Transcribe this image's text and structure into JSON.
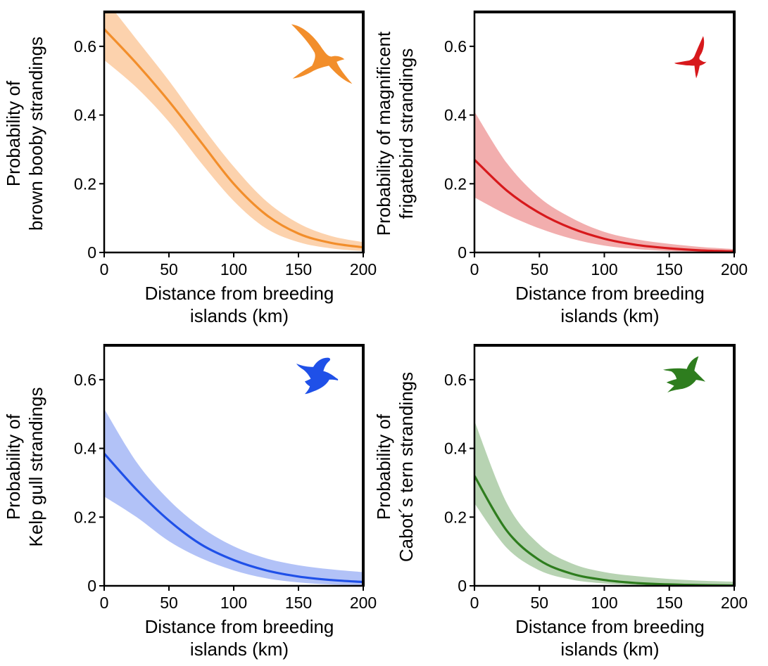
{
  "chart_data": [
    {
      "type": "line",
      "panel": "top-left",
      "xlabel": [
        "Distance from breeding",
        "islands (km)"
      ],
      "ylabel": [
        "Probability of",
        "brown booby strandings"
      ],
      "xlim": [
        0,
        200
      ],
      "ylim": [
        0,
        0.7
      ],
      "x_ticks": [
        "0",
        "50",
        "100",
        "150",
        "200"
      ],
      "y_ticks": [
        "0",
        "0.2",
        "0.4",
        "0.6"
      ],
      "color": "#f28e2b",
      "band_color": "#fcd2ad",
      "icon": "brown-booby-silhouette-icon",
      "series": [
        {
          "x": [
            0,
            25,
            50,
            75,
            100,
            125,
            150,
            175,
            200
          ],
          "y": [
            0.65,
            0.55,
            0.44,
            0.32,
            0.2,
            0.11,
            0.055,
            0.028,
            0.015
          ],
          "y_lower": [
            0.56,
            0.48,
            0.38,
            0.26,
            0.15,
            0.07,
            0.03,
            0.012,
            0.004
          ],
          "y_upper": [
            0.74,
            0.62,
            0.5,
            0.37,
            0.25,
            0.15,
            0.085,
            0.048,
            0.03
          ]
        }
      ]
    },
    {
      "type": "line",
      "panel": "top-right",
      "xlabel": [
        "Distance from breeding",
        "islands (km)"
      ],
      "ylabel": [
        "Probability of magnificent",
        "frigatebird strandings"
      ],
      "xlim": [
        0,
        200
      ],
      "ylim": [
        0,
        0.7
      ],
      "x_ticks": [
        "0",
        "50",
        "100",
        "150",
        "200"
      ],
      "y_ticks": [
        "0",
        "0.2",
        "0.4",
        "0.6"
      ],
      "color": "#d7191c",
      "band_color": "#f2aeae",
      "icon": "magnificent-frigatebird-silhouette-icon",
      "series": [
        {
          "x": [
            0,
            25,
            50,
            75,
            100,
            125,
            150,
            175,
            200
          ],
          "y": [
            0.27,
            0.18,
            0.115,
            0.07,
            0.04,
            0.022,
            0.012,
            0.006,
            0.003
          ],
          "y_lower": [
            0.16,
            0.11,
            0.07,
            0.04,
            0.02,
            0.01,
            0.004,
            0.001,
            0.0
          ],
          "y_upper": [
            0.41,
            0.26,
            0.16,
            0.1,
            0.06,
            0.038,
            0.025,
            0.016,
            0.01
          ]
        }
      ]
    },
    {
      "type": "line",
      "panel": "bottom-left",
      "xlabel": [
        "Distance from breeding",
        "islands (km)"
      ],
      "ylabel": [
        "Probability of",
        "Kelp gull strandings"
      ],
      "xlim": [
        0,
        200
      ],
      "ylim": [
        0,
        0.7
      ],
      "x_ticks": [
        "0",
        "50",
        "100",
        "150",
        "200"
      ],
      "y_ticks": [
        "0",
        "0.2",
        "0.4",
        "0.6"
      ],
      "color": "#1f50e8",
      "band_color": "#b2c2f7",
      "icon": "kelp-gull-silhouette-icon",
      "series": [
        {
          "x": [
            0,
            25,
            50,
            75,
            100,
            125,
            150,
            175,
            200
          ],
          "y": [
            0.385,
            0.28,
            0.19,
            0.12,
            0.075,
            0.045,
            0.027,
            0.017,
            0.011
          ],
          "y_lower": [
            0.26,
            0.2,
            0.13,
            0.08,
            0.045,
            0.022,
            0.01,
            0.004,
            0.002
          ],
          "y_upper": [
            0.515,
            0.36,
            0.25,
            0.17,
            0.115,
            0.08,
            0.06,
            0.048,
            0.04
          ]
        }
      ]
    },
    {
      "type": "line",
      "panel": "bottom-right",
      "xlabel": [
        "Distance from breeding",
        "islands (km)"
      ],
      "ylabel": [
        "Probability of",
        "Cabot´s tern strandings"
      ],
      "xlim": [
        0,
        200
      ],
      "ylim": [
        0,
        0.7
      ],
      "x_ticks": [
        "0",
        "50",
        "100",
        "150",
        "200"
      ],
      "y_ticks": [
        "0",
        "0.2",
        "0.4",
        "0.6"
      ],
      "color": "#2e7d1e",
      "band_color": "#b7d3b2",
      "icon": "cabots-tern-silhouette-icon",
      "series": [
        {
          "x": [
            0,
            25,
            50,
            75,
            100,
            125,
            150,
            175,
            200
          ],
          "y": [
            0.32,
            0.16,
            0.075,
            0.035,
            0.017,
            0.008,
            0.004,
            0.002,
            0.001
          ],
          "y_lower": [
            0.24,
            0.11,
            0.045,
            0.018,
            0.007,
            0.002,
            0.0,
            0.0,
            0.0
          ],
          "y_upper": [
            0.48,
            0.24,
            0.12,
            0.065,
            0.04,
            0.028,
            0.02,
            0.015,
            0.012
          ]
        }
      ]
    }
  ]
}
